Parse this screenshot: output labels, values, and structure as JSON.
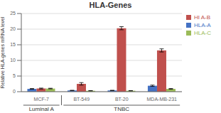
{
  "chart_data": {
    "type": "bar",
    "title": "HLA-Genes",
    "ylabel": "Relative HLA-genes mRNA level",
    "categories": [
      "MCF-7",
      "BT-549",
      "BT-20",
      "MDA-MB-231"
    ],
    "annotations": [
      {
        "text": "Luminal A",
        "categories": [
          "MCF-7"
        ]
      },
      {
        "text": "TNBC",
        "categories": [
          "BT-549",
          "BT-20",
          "MDA-MB-231"
        ]
      }
    ],
    "series": [
      {
        "name": "HLA-A",
        "color": "#4472C4",
        "values": [
          0.9,
          0.4,
          0.4,
          1.9
        ],
        "errors": [
          0.1,
          0.05,
          0.05,
          0.2
        ]
      },
      {
        "name": "HI A-B",
        "color": "#C0504D",
        "values": [
          1.0,
          2.5,
          20.3,
          13.2
        ],
        "errors": [
          0.15,
          0.4,
          0.5,
          0.5
        ]
      },
      {
        "name": "HLA-C",
        "color": "#9BBB59",
        "values": [
          1.0,
          0.3,
          0.3,
          0.9
        ],
        "errors": [
          0.1,
          0.05,
          0.05,
          0.1
        ]
      }
    ],
    "ylim": [
      0,
      25
    ],
    "yticks": [
      0,
      5,
      10,
      15,
      20,
      25
    ],
    "grid": true,
    "legend": "upper right"
  }
}
